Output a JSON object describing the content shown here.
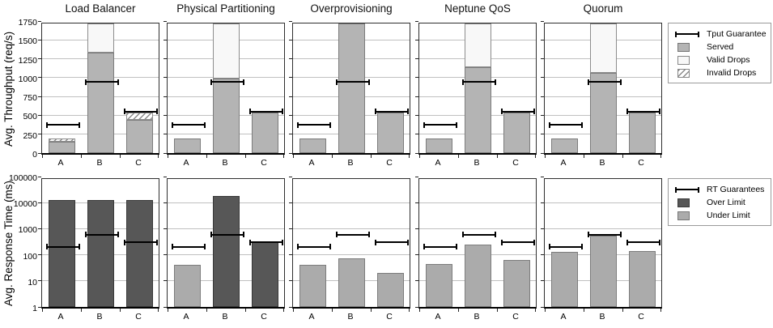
{
  "colors": {
    "served": "#b4b4b4",
    "valid_drops": "#f8f8f8",
    "invalid_hatch": "#8a8a8a",
    "over_limit": "#575757",
    "under_limit": "#ababab",
    "gridline": "#c0c0c0",
    "guarantee_line": "#000000"
  },
  "chart_data": [
    {
      "type": "bar",
      "stacked": true,
      "scale": "linear",
      "ylabel": "Avg. Throughput (req/s)",
      "ylim": [
        0,
        1750
      ],
      "yticks": [
        0,
        250,
        500,
        750,
        1000,
        1250,
        1500,
        1750
      ],
      "categories": [
        "A",
        "B",
        "C"
      ],
      "grid": true,
      "legend_position": "right",
      "legend": {
        "items": [
          {
            "symbol": "errbar",
            "label": "Tput Guarantee"
          },
          {
            "symbol": "served",
            "label": "Served"
          },
          {
            "symbol": "valid",
            "label": "Valid Drops"
          },
          {
            "symbol": "invalid",
            "label": "Invalid Drops"
          }
        ]
      },
      "panels": [
        {
          "title": "Load Balancer",
          "bars": [
            {
              "category": "A",
              "served": 155,
              "valid_drops": 0,
              "invalid_drops": 40,
              "guarantee": 375
            },
            {
              "category": "B",
              "served": 1330,
              "valid_drops": 390,
              "invalid_drops": 0,
              "guarantee": 940
            },
            {
              "category": "C",
              "served": 440,
              "valid_drops": 0,
              "invalid_drops": 100,
              "guarantee": 550
            }
          ]
        },
        {
          "title": "Physical Partitioning",
          "bars": [
            {
              "category": "A",
              "served": 190,
              "valid_drops": 0,
              "invalid_drops": 0,
              "guarantee": 375
            },
            {
              "category": "B",
              "served": 985,
              "valid_drops": 735,
              "invalid_drops": 0,
              "guarantee": 940
            },
            {
              "category": "C",
              "served": 540,
              "valid_drops": 0,
              "invalid_drops": 0,
              "guarantee": 550
            }
          ]
        },
        {
          "title": "Overprovisioning",
          "bars": [
            {
              "category": "A",
              "served": 190,
              "valid_drops": 0,
              "invalid_drops": 0,
              "guarantee": 375
            },
            {
              "category": "B",
              "served": 1720,
              "valid_drops": 0,
              "invalid_drops": 0,
              "guarantee": 940
            },
            {
              "category": "C",
              "served": 540,
              "valid_drops": 0,
              "invalid_drops": 0,
              "guarantee": 550
            }
          ]
        },
        {
          "title": "Neptune QoS",
          "bars": [
            {
              "category": "A",
              "served": 190,
              "valid_drops": 0,
              "invalid_drops": 0,
              "guarantee": 375
            },
            {
              "category": "B",
              "served": 1140,
              "valid_drops": 580,
              "invalid_drops": 0,
              "guarantee": 940
            },
            {
              "category": "C",
              "served": 540,
              "valid_drops": 0,
              "invalid_drops": 0,
              "guarantee": 550
            }
          ]
        },
        {
          "title": "Quorum",
          "bars": [
            {
              "category": "A",
              "served": 190,
              "valid_drops": 0,
              "invalid_drops": 0,
              "guarantee": 375
            },
            {
              "category": "B",
              "served": 1060,
              "valid_drops": 660,
              "invalid_drops": 0,
              "guarantee": 940
            },
            {
              "category": "C",
              "served": 540,
              "valid_drops": 0,
              "invalid_drops": 0,
              "guarantee": 550
            }
          ]
        }
      ]
    },
    {
      "type": "bar",
      "stacked": false,
      "scale": "log",
      "ylabel": "Avg. Response Time (ms)",
      "ylim": [
        1,
        100000
      ],
      "yticks": [
        1,
        10,
        100,
        1000,
        10000,
        100000
      ],
      "categories": [
        "A",
        "B",
        "C"
      ],
      "grid": true,
      "legend_position": "right",
      "legend": {
        "items": [
          {
            "symbol": "errbar",
            "label": "RT Guarantees"
          },
          {
            "symbol": "over",
            "label": "Over Limit"
          },
          {
            "symbol": "under",
            "label": "Under Limit"
          }
        ]
      },
      "panels": [
        {
          "title": "Load Balancer",
          "bars": [
            {
              "category": "A",
              "value": 13000,
              "over_limit": true,
              "guarantee": 200
            },
            {
              "category": "B",
              "value": 13000,
              "over_limit": true,
              "guarantee": 600
            },
            {
              "category": "C",
              "value": 13000,
              "over_limit": true,
              "guarantee": 300
            }
          ]
        },
        {
          "title": "Physical Partitioning",
          "bars": [
            {
              "category": "A",
              "value": 40,
              "over_limit": false,
              "guarantee": 200
            },
            {
              "category": "B",
              "value": 18000,
              "over_limit": true,
              "guarantee": 600
            },
            {
              "category": "C",
              "value": 300,
              "over_limit": true,
              "guarantee": 300
            }
          ]
        },
        {
          "title": "Overprovisioning",
          "bars": [
            {
              "category": "A",
              "value": 40,
              "over_limit": false,
              "guarantee": 200
            },
            {
              "category": "B",
              "value": 75,
              "over_limit": false,
              "guarantee": 600
            },
            {
              "category": "C",
              "value": 20,
              "over_limit": false,
              "guarantee": 300
            }
          ]
        },
        {
          "title": "Neptune QoS",
          "bars": [
            {
              "category": "A",
              "value": 45,
              "over_limit": false,
              "guarantee": 200
            },
            {
              "category": "B",
              "value": 250,
              "over_limit": false,
              "guarantee": 600
            },
            {
              "category": "C",
              "value": 65,
              "over_limit": false,
              "guarantee": 300
            }
          ]
        },
        {
          "title": "Quorum",
          "bars": [
            {
              "category": "A",
              "value": 125,
              "over_limit": false,
              "guarantee": 200
            },
            {
              "category": "B",
              "value": 560,
              "over_limit": false,
              "guarantee": 600
            },
            {
              "category": "C",
              "value": 135,
              "over_limit": false,
              "guarantee": 300
            }
          ]
        }
      ]
    }
  ]
}
